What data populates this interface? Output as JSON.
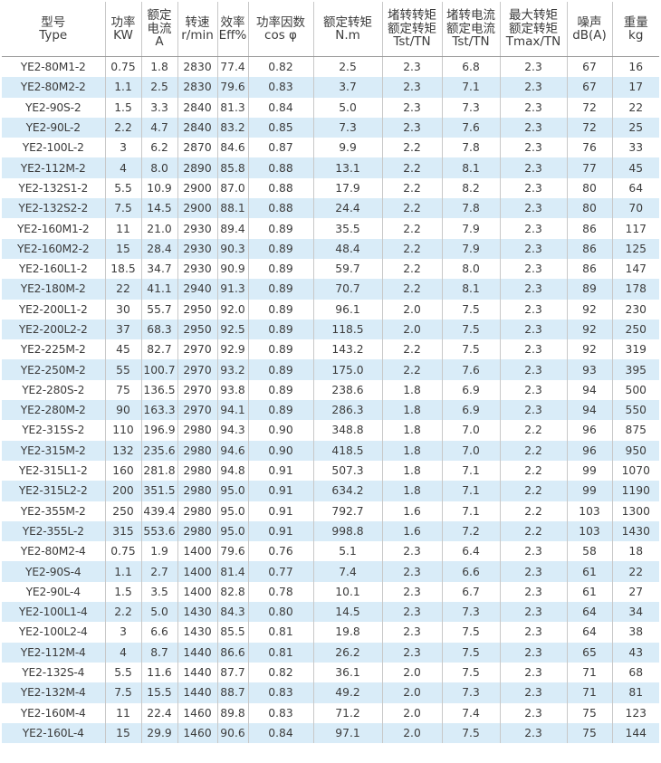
{
  "headers": [
    [
      "型号",
      "Type"
    ],
    [
      "功率",
      "KW"
    ],
    [
      "额定",
      "电流",
      "A"
    ],
    [
      "转速",
      "r/min"
    ],
    [
      "效率",
      "Eff%"
    ],
    [
      "功率因数",
      "cos φ"
    ],
    [
      "额定转矩",
      "N.m"
    ],
    [
      "堵转转矩",
      "额定转矩",
      "Tst/TN"
    ],
    [
      "堵转电流",
      "额定电流",
      "Tst/TN"
    ],
    [
      "最大转矩",
      "额定转矩",
      "Tmax/TN"
    ],
    [
      "噪声",
      "dB(A)"
    ],
    [
      "重量",
      "kg"
    ]
  ],
  "rows": [
    [
      "YE2-80M1-2",
      "0.75",
      "1.8",
      "2830",
      "77.4",
      "0.82",
      "2.5",
      "2.3",
      "6.8",
      "2.3",
      "67",
      "16"
    ],
    [
      "YE2-80M2-2",
      "1.1",
      "2.5",
      "2830",
      "79.6",
      "0.83",
      "3.7",
      "2.3",
      "7.1",
      "2.3",
      "67",
      "17"
    ],
    [
      "YE2-90S-2",
      "1.5",
      "3.3",
      "2840",
      "81.3",
      "0.84",
      "5.0",
      "2.3",
      "7.3",
      "2.3",
      "72",
      "22"
    ],
    [
      "YE2-90L-2",
      "2.2",
      "4.7",
      "2840",
      "83.2",
      "0.85",
      "7.3",
      "2.3",
      "7.6",
      "2.3",
      "72",
      "25"
    ],
    [
      "YE2-100L-2",
      "3",
      "6.2",
      "2870",
      "84.6",
      "0.87",
      "9.9",
      "2.2",
      "7.8",
      "2.3",
      "76",
      "33"
    ],
    [
      "YE2-112M-2",
      "4",
      "8.0",
      "2890",
      "85.8",
      "0.88",
      "13.1",
      "2.2",
      "8.1",
      "2.3",
      "77",
      "45"
    ],
    [
      "YE2-132S1-2",
      "5.5",
      "10.9",
      "2900",
      "87.0",
      "0.88",
      "17.9",
      "2.2",
      "8.2",
      "2.3",
      "80",
      "64"
    ],
    [
      "YE2-132S2-2",
      "7.5",
      "14.5",
      "2900",
      "88.1",
      "0.88",
      "24.4",
      "2.2",
      "7.8",
      "2.3",
      "80",
      "70"
    ],
    [
      "YE2-160M1-2",
      "11",
      "21.0",
      "2930",
      "89.4",
      "0.89",
      "35.5",
      "2.2",
      "7.9",
      "2.3",
      "86",
      "117"
    ],
    [
      "YE2-160M2-2",
      "15",
      "28.4",
      "2930",
      "90.3",
      "0.89",
      "48.4",
      "2.2",
      "7.9",
      "2.3",
      "86",
      "125"
    ],
    [
      "YE2-160L1-2",
      "18.5",
      "34.7",
      "2930",
      "90.9",
      "0.89",
      "59.7",
      "2.2",
      "8.0",
      "2.3",
      "86",
      "147"
    ],
    [
      "YE2-180M-2",
      "22",
      "41.1",
      "2940",
      "91.3",
      "0.89",
      "70.7",
      "2.2",
      "8.1",
      "2.3",
      "89",
      "178"
    ],
    [
      "YE2-200L1-2",
      "30",
      "55.7",
      "2950",
      "92.0",
      "0.89",
      "96.1",
      "2.0",
      "7.5",
      "2.3",
      "92",
      "230"
    ],
    [
      "YE2-200L2-2",
      "37",
      "68.3",
      "2950",
      "92.5",
      "0.89",
      "118.5",
      "2.0",
      "7.5",
      "2.3",
      "92",
      "250"
    ],
    [
      "YE2-225M-2",
      "45",
      "82.7",
      "2970",
      "92.9",
      "0.89",
      "143.2",
      "2.2",
      "7.5",
      "2.3",
      "92",
      "319"
    ],
    [
      "YE2-250M-2",
      "55",
      "100.7",
      "2970",
      "93.2",
      "0.89",
      "175.0",
      "2.2",
      "7.6",
      "2.3",
      "93",
      "395"
    ],
    [
      "YE2-280S-2",
      "75",
      "136.5",
      "2970",
      "93.8",
      "0.89",
      "238.6",
      "1.8",
      "6.9",
      "2.3",
      "94",
      "500"
    ],
    [
      "YE2-280M-2",
      "90",
      "163.3",
      "2970",
      "94.1",
      "0.89",
      "286.3",
      "1.8",
      "6.9",
      "2.3",
      "94",
      "550"
    ],
    [
      "YE2-315S-2",
      "110",
      "196.9",
      "2980",
      "94.3",
      "0.90",
      "348.8",
      "1.8",
      "7.0",
      "2.2",
      "96",
      "875"
    ],
    [
      "YE2-315M-2",
      "132",
      "235.6",
      "2980",
      "94.6",
      "0.90",
      "418.5",
      "1.8",
      "7.0",
      "2.2",
      "96",
      "950"
    ],
    [
      "YE2-315L1-2",
      "160",
      "281.8",
      "2980",
      "94.8",
      "0.91",
      "507.3",
      "1.8",
      "7.1",
      "2.2",
      "99",
      "1070"
    ],
    [
      "YE2-315L2-2",
      "200",
      "351.5",
      "2980",
      "95.0",
      "0.91",
      "634.2",
      "1.8",
      "7.1",
      "2.2",
      "99",
      "1190"
    ],
    [
      "YE2-355M-2",
      "250",
      "439.4",
      "2980",
      "95.0",
      "0.91",
      "792.7",
      "1.6",
      "7.1",
      "2.2",
      "103",
      "1300"
    ],
    [
      "YE2-355L-2",
      "315",
      "553.6",
      "2980",
      "95.0",
      "0.91",
      "998.8",
      "1.6",
      "7.2",
      "2.2",
      "103",
      "1430"
    ],
    [
      "YE2-80M2-4",
      "0.75",
      "1.9",
      "1400",
      "79.6",
      "0.76",
      "5.1",
      "2.3",
      "6.4",
      "2.3",
      "58",
      "18"
    ],
    [
      "YE2-90S-4",
      "1.1",
      "2.7",
      "1400",
      "81.4",
      "0.77",
      "7.4",
      "2.3",
      "6.6",
      "2.3",
      "61",
      "22"
    ],
    [
      "YE2-90L-4",
      "1.5",
      "3.5",
      "1400",
      "82.8",
      "0.78",
      "10.1",
      "2.3",
      "6.7",
      "2.3",
      "61",
      "27"
    ],
    [
      "YE2-100L1-4",
      "2.2",
      "5.0",
      "1430",
      "84.3",
      "0.80",
      "14.5",
      "2.3",
      "7.3",
      "2.3",
      "64",
      "34"
    ],
    [
      "YE2-100L2-4",
      "3",
      "6.6",
      "1430",
      "85.5",
      "0.81",
      "19.8",
      "2.3",
      "7.5",
      "2.3",
      "64",
      "38"
    ],
    [
      "YE2-112M-4",
      "4",
      "8.7",
      "1440",
      "86.6",
      "0.81",
      "26.2",
      "2.3",
      "7.5",
      "2.3",
      "65",
      "43"
    ],
    [
      "YE2-132S-4",
      "5.5",
      "11.6",
      "1440",
      "87.7",
      "0.82",
      "36.1",
      "2.0",
      "7.5",
      "2.3",
      "71",
      "68"
    ],
    [
      "YE2-132M-4",
      "7.5",
      "15.5",
      "1440",
      "88.7",
      "0.83",
      "49.2",
      "2.0",
      "7.3",
      "2.3",
      "71",
      "81"
    ],
    [
      "YE2-160M-4",
      "11",
      "22.4",
      "1460",
      "89.8",
      "0.83",
      "71.2",
      "2.0",
      "7.4",
      "2.3",
      "75",
      "123"
    ],
    [
      "YE2-160L-4",
      "15",
      "29.9",
      "1460",
      "90.6",
      "0.84",
      "97.1",
      "2.0",
      "7.5",
      "2.3",
      "75",
      "144"
    ]
  ]
}
